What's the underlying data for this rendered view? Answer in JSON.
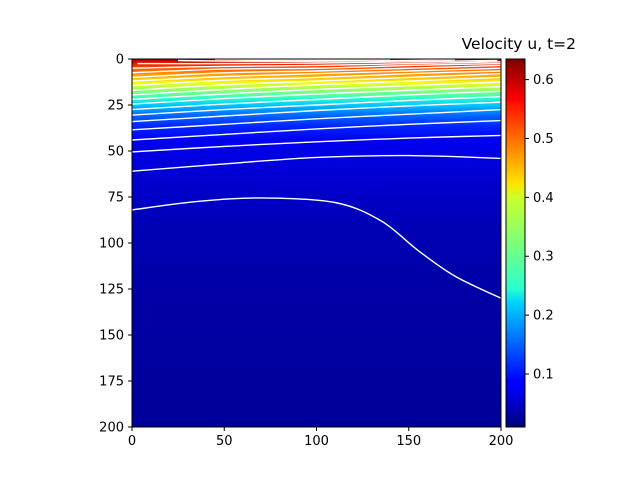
{
  "chart_data": {
    "type": "heatmap",
    "title": "Velocity u, t=2",
    "colormap": "jet",
    "x": {
      "min": 0,
      "max": 200,
      "ticks": [
        0,
        50,
        100,
        150,
        200
      ]
    },
    "y": {
      "min": 0,
      "max": 200,
      "inverted": true,
      "ticks": [
        0,
        25,
        50,
        75,
        100,
        125,
        150,
        175,
        200
      ]
    },
    "colorbar": {
      "min": 0.01,
      "max": 0.635,
      "ticks": [
        0.1,
        0.2,
        0.3,
        0.4,
        0.5,
        0.6
      ],
      "tick_labels": [
        "0.1",
        "0.2",
        "0.3",
        "0.4",
        "0.5",
        "0.6"
      ]
    },
    "contour_color": "#ffffff",
    "contours": [
      {
        "level": 0.03,
        "points": [
          [
            0,
            82
          ],
          [
            35,
            77.5
          ],
          [
            70,
            75.5
          ],
          [
            110,
            78
          ],
          [
            135,
            88
          ],
          [
            155,
            104
          ],
          [
            175,
            118
          ],
          [
            200,
            130
          ]
        ]
      },
      {
        "level": 0.06,
        "points": [
          [
            0,
            61
          ],
          [
            50,
            57
          ],
          [
            100,
            53.5
          ],
          [
            150,
            52.5
          ],
          [
            200,
            54
          ]
        ]
      },
      {
        "level": 0.09,
        "points": [
          [
            0,
            50.5
          ],
          [
            50,
            47.5
          ],
          [
            100,
            45
          ],
          [
            150,
            43
          ],
          [
            200,
            41.5
          ]
        ]
      },
      {
        "level": 0.12,
        "points": [
          [
            0,
            44
          ],
          [
            50,
            41
          ],
          [
            100,
            38
          ],
          [
            150,
            35.5
          ],
          [
            200,
            33.5
          ]
        ]
      },
      {
        "level": 0.15,
        "points": [
          [
            0,
            38.5
          ],
          [
            50,
            35.5
          ],
          [
            100,
            32.5
          ],
          [
            150,
            30
          ],
          [
            200,
            27.5
          ]
        ]
      },
      {
        "level": 0.18,
        "points": [
          [
            0,
            34
          ],
          [
            50,
            31
          ],
          [
            100,
            28
          ],
          [
            150,
            25.5
          ],
          [
            200,
            23.5
          ]
        ]
      },
      {
        "level": 0.21,
        "points": [
          [
            0,
            30.5
          ],
          [
            50,
            27.5
          ],
          [
            100,
            25
          ],
          [
            150,
            22.5
          ],
          [
            200,
            20.5
          ]
        ]
      },
      {
        "level": 0.24,
        "points": [
          [
            0,
            27.5
          ],
          [
            50,
            24.5
          ],
          [
            100,
            22
          ],
          [
            150,
            19.5
          ],
          [
            200,
            17.5
          ]
        ]
      },
      {
        "level": 0.27,
        "points": [
          [
            0,
            24.5
          ],
          [
            50,
            21.5
          ],
          [
            100,
            19
          ],
          [
            150,
            17
          ],
          [
            200,
            15
          ]
        ]
      },
      {
        "level": 0.3,
        "points": [
          [
            0,
            22
          ],
          [
            50,
            19
          ],
          [
            100,
            16.5
          ],
          [
            150,
            14.5
          ],
          [
            200,
            12.5
          ]
        ]
      },
      {
        "level": 0.33,
        "points": [
          [
            0,
            19.5
          ],
          [
            50,
            16.5
          ],
          [
            100,
            14
          ],
          [
            150,
            12
          ],
          [
            200,
            10
          ]
        ]
      },
      {
        "level": 0.36,
        "points": [
          [
            0,
            17
          ],
          [
            50,
            14
          ],
          [
            100,
            12
          ],
          [
            150,
            10
          ],
          [
            200,
            8
          ]
        ]
      },
      {
        "level": 0.39,
        "points": [
          [
            0,
            14.5
          ],
          [
            50,
            11.5
          ],
          [
            100,
            10
          ],
          [
            150,
            8
          ],
          [
            200,
            6.5
          ]
        ]
      },
      {
        "level": 0.42,
        "points": [
          [
            0,
            12
          ],
          [
            50,
            9.5
          ],
          [
            100,
            8
          ],
          [
            150,
            6.5
          ],
          [
            200,
            5
          ]
        ]
      },
      {
        "level": 0.45,
        "points": [
          [
            0,
            10
          ],
          [
            50,
            7.5
          ],
          [
            100,
            6.5
          ],
          [
            150,
            5
          ],
          [
            200,
            3.5
          ]
        ]
      },
      {
        "level": 0.48,
        "points": [
          [
            0,
            7.5
          ],
          [
            50,
            5.5
          ],
          [
            100,
            5
          ],
          [
            150,
            3.5
          ],
          [
            200,
            2.5
          ]
        ]
      },
      {
        "level": 0.51,
        "points": [
          [
            0,
            5
          ],
          [
            50,
            4
          ],
          [
            100,
            3.5
          ],
          [
            150,
            2.5
          ],
          [
            200,
            1.5
          ]
        ]
      },
      {
        "level": 0.54,
        "points": [
          [
            3,
            2.5
          ],
          [
            50,
            2.5
          ],
          [
            100,
            2.2
          ],
          [
            150,
            1.5
          ],
          [
            198,
            0.8
          ]
        ]
      },
      {
        "level": 0.57,
        "points": [
          [
            25,
            0.8
          ],
          [
            60,
            1.2
          ],
          [
            100,
            1.2
          ],
          [
            140,
            0.9
          ],
          [
            175,
            0.4
          ]
        ]
      },
      {
        "level": 0.6,
        "points": [
          [
            45,
            0.2
          ],
          [
            75,
            0.5
          ],
          [
            110,
            0.5
          ],
          [
            140,
            0.2
          ]
        ]
      }
    ]
  }
}
